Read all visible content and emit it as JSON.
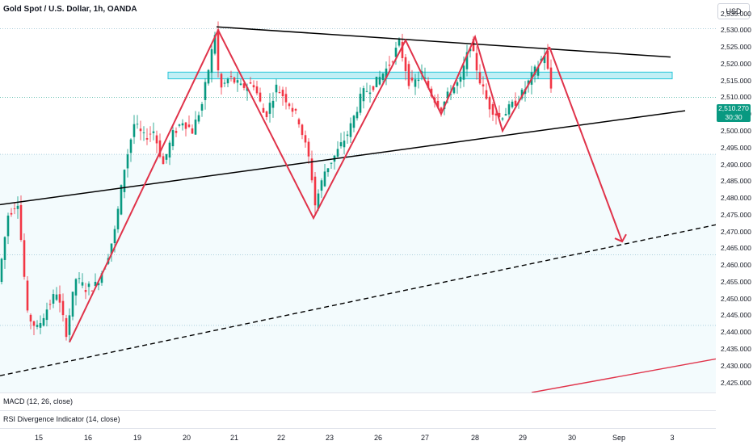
{
  "header": {
    "symbol_title": "Gold Spot / U.S. Dollar, 1h, OANDA",
    "currency": "USD"
  },
  "price_axis": {
    "ticks": [
      "2,535.000",
      "2,530.000",
      "2,525.000",
      "2,520.000",
      "2,515.000",
      "2,510.000",
      "2,505.000",
      "2,500.000",
      "2,495.000",
      "2,490.000",
      "2,485.000",
      "2,480.000",
      "2,475.000",
      "2,470.000",
      "2,465.000",
      "2,460.000",
      "2,455.000",
      "2,450.000",
      "2,445.000",
      "2,440.000",
      "2,435.000",
      "2,430.000",
      "2,425.000"
    ],
    "last_price": "2,510.270",
    "countdown": "30:30"
  },
  "time_axis": {
    "labels": [
      "15",
      "16",
      "19",
      "20",
      "21",
      "22",
      "23",
      "26",
      "27",
      "28",
      "29",
      "30",
      "Sep",
      "3"
    ]
  },
  "indicators": {
    "macd": "MACD (12, 26, close)",
    "rsi": "RSI Divergence Indicator (14, close)"
  },
  "colors": {
    "up": "#089981",
    "down": "#f23645",
    "zigzag": "#e0334a",
    "zone_fill": "#b2ebf2",
    "zone_border": "#26c6da"
  },
  "chart_data": {
    "type": "candlestick",
    "title": "Gold Spot / U.S. Dollar, 1h, OANDA",
    "ylim": [
      2422,
      2539
    ],
    "price_ticks": [
      2535,
      2530,
      2525,
      2520,
      2515,
      2510,
      2505,
      2500,
      2495,
      2490,
      2485,
      2480,
      2475,
      2470,
      2465,
      2460,
      2455,
      2450,
      2445,
      2440,
      2435,
      2430,
      2425
    ],
    "time_labels": [
      "15",
      "16",
      "19",
      "20",
      "21",
      "22",
      "23",
      "26",
      "27",
      "28",
      "29",
      "30",
      "Sep",
      "3"
    ],
    "last_price": 2510.27,
    "price_path": [
      [
        0,
        2455
      ],
      [
        12,
        2475
      ],
      [
        24,
        2479
      ],
      [
        36,
        2445
      ],
      [
        48,
        2441
      ],
      [
        60,
        2447
      ],
      [
        72,
        2452
      ],
      [
        84,
        2440
      ],
      [
        96,
        2456
      ],
      [
        108,
        2453
      ],
      [
        120,
        2454
      ],
      [
        132,
        2460
      ],
      [
        144,
        2470
      ],
      [
        156,
        2489
      ],
      [
        168,
        2502
      ],
      [
        180,
        2498
      ],
      [
        192,
        2500
      ],
      [
        204,
        2490
      ],
      [
        216,
        2499
      ],
      [
        228,
        2503
      ],
      [
        240,
        2500
      ],
      [
        252,
        2508
      ],
      [
        262,
        2521
      ],
      [
        268,
        2529
      ],
      [
        274,
        2512
      ],
      [
        286,
        2516
      ],
      [
        300,
        2513
      ],
      [
        316,
        2514
      ],
      [
        330,
        2504
      ],
      [
        344,
        2513
      ],
      [
        358,
        2509
      ],
      [
        372,
        2503
      ],
      [
        386,
        2490
      ],
      [
        392,
        2478
      ],
      [
        404,
        2488
      ],
      [
        420,
        2494
      ],
      [
        434,
        2500
      ],
      [
        450,
        2511
      ],
      [
        466,
        2514
      ],
      [
        482,
        2519
      ],
      [
        496,
        2526
      ],
      [
        510,
        2513
      ],
      [
        524,
        2517
      ],
      [
        538,
        2510
      ],
      [
        548,
        2507
      ],
      [
        560,
        2512
      ],
      [
        572,
        2515
      ],
      [
        584,
        2526
      ],
      [
        596,
        2515
      ],
      [
        606,
        2508
      ],
      [
        620,
        2504
      ],
      [
        634,
        2507
      ],
      [
        648,
        2511
      ],
      [
        662,
        2517
      ],
      [
        676,
        2523
      ],
      [
        686,
        2510
      ]
    ],
    "zigzag": [
      [
        86,
        2437
      ],
      [
        270,
        2530
      ],
      [
        388,
        2474
      ],
      [
        502,
        2527
      ],
      [
        546,
        2505
      ],
      [
        588,
        2528
      ],
      [
        622,
        2500
      ],
      [
        680,
        2525
      ]
    ],
    "projection": [
      [
        680,
        2525
      ],
      [
        770,
        2467
      ]
    ],
    "resistance_trendline": [
      [
        268,
        2531
      ],
      [
        830,
        2522
      ]
    ],
    "support_trendline": [
      [
        0,
        2478
      ],
      [
        848,
        2506
      ]
    ],
    "lower_channel_dashed": [
      [
        0,
        2427
      ],
      [
        886,
        2472
      ]
    ],
    "red_line_bottom": [
      [
        658,
        2422
      ],
      [
        886,
        2432
      ]
    ],
    "zone": {
      "x0": 208,
      "x1": 832,
      "top": 2517.5,
      "bottom": 2515.5
    },
    "horizontal_levels": [
      2530.5,
      2510,
      2493,
      2463,
      2442
    ]
  }
}
